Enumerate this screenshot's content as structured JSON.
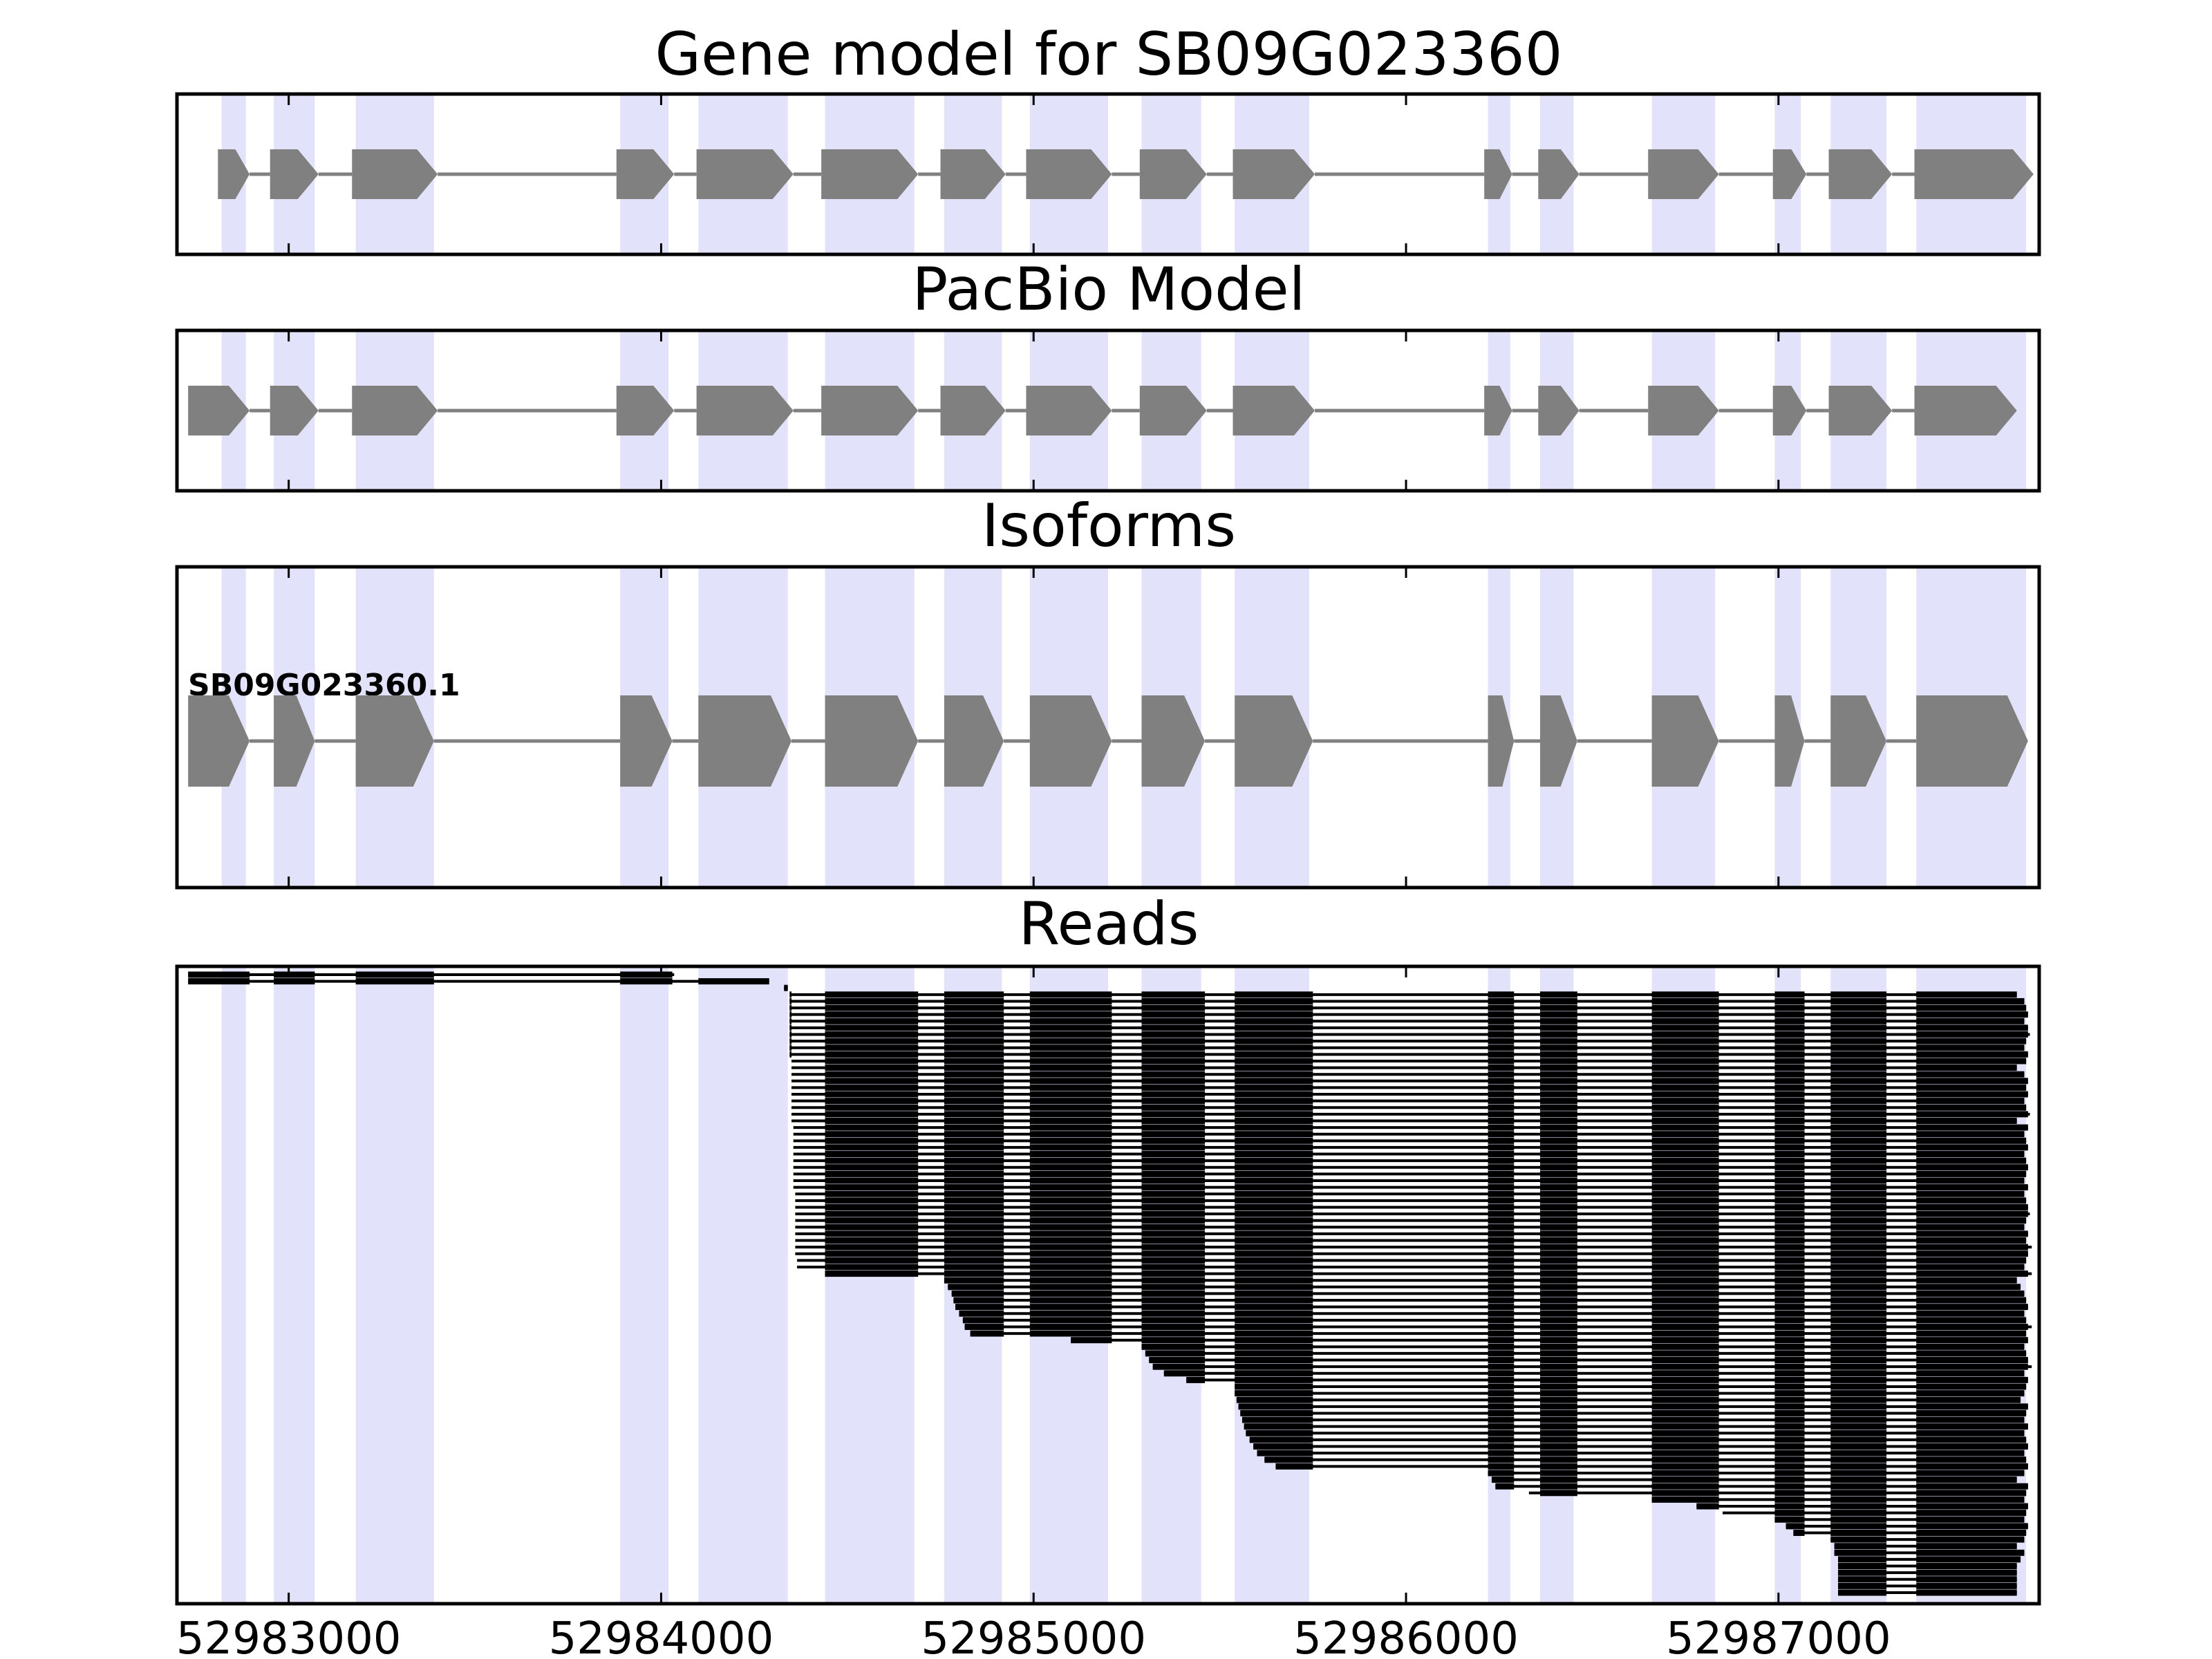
{
  "chart_data": {
    "type": "gene_model_tracks",
    "x_range": [
      52982700,
      52987700
    ],
    "x_ticks": [
      52983000,
      52984000,
      52985000,
      52986000,
      52987000
    ],
    "x_tick_labels": [
      "52983000",
      "52984000",
      "52985000",
      "52986000",
      "52987000"
    ],
    "highlight_color": "#e2e2fb",
    "feature_color": "#808080",
    "read_color": "#000000",
    "highlight_regions": [
      [
        52982820,
        52982885
      ],
      [
        52982960,
        52983070
      ],
      [
        52983180,
        52983390
      ],
      [
        52983890,
        52984020
      ],
      [
        52984100,
        52984340
      ],
      [
        52984440,
        52984680
      ],
      [
        52984760,
        52984915
      ],
      [
        52984990,
        52985200
      ],
      [
        52985290,
        52985450
      ],
      [
        52985540,
        52985740
      ],
      [
        52986220,
        52986280
      ],
      [
        52986360,
        52986450
      ],
      [
        52986660,
        52986830
      ],
      [
        52986990,
        52987060
      ],
      [
        52987140,
        52987290
      ],
      [
        52987370,
        52987665
      ]
    ],
    "panels": [
      {
        "title": "Gene model for SB09G023360",
        "exons": [
          [
            52982810,
            52982895
          ],
          [
            52982950,
            52983080
          ],
          [
            52983170,
            52983400
          ],
          [
            52983880,
            52984035
          ],
          [
            52984095,
            52984355
          ],
          [
            52984430,
            52984690
          ],
          [
            52984750,
            52984925
          ],
          [
            52984980,
            52985210
          ],
          [
            52985285,
            52985465
          ],
          [
            52985535,
            52985755
          ],
          [
            52986210,
            52986285
          ],
          [
            52986355,
            52986465
          ],
          [
            52986650,
            52986840
          ],
          [
            52986985,
            52987075
          ],
          [
            52987135,
            52987305
          ],
          [
            52987365,
            52987685
          ]
        ]
      },
      {
        "title": "PacBio Model",
        "exons": [
          [
            52982730,
            52982895
          ],
          [
            52982950,
            52983080
          ],
          [
            52983170,
            52983400
          ],
          [
            52983880,
            52984035
          ],
          [
            52984095,
            52984355
          ],
          [
            52984430,
            52984690
          ],
          [
            52984750,
            52984925
          ],
          [
            52984980,
            52985210
          ],
          [
            52985285,
            52985465
          ],
          [
            52985535,
            52985755
          ],
          [
            52986210,
            52986285
          ],
          [
            52986355,
            52986465
          ],
          [
            52986650,
            52986840
          ],
          [
            52986985,
            52987075
          ],
          [
            52987135,
            52987305
          ],
          [
            52987365,
            52987640
          ]
        ]
      },
      {
        "title": "Isoforms",
        "isoforms": [
          {
            "name": "SB09G023360.1",
            "exons": [
              [
                52982730,
                52982895
              ],
              [
                52982960,
                52983070
              ],
              [
                52983180,
                52983390
              ],
              [
                52983890,
                52984030
              ],
              [
                52984100,
                52984350
              ],
              [
                52984440,
                52984690
              ],
              [
                52984760,
                52984920
              ],
              [
                52984990,
                52985210
              ],
              [
                52985290,
                52985460
              ],
              [
                52985540,
                52985750
              ],
              [
                52986220,
                52986290
              ],
              [
                52986360,
                52986460
              ],
              [
                52986660,
                52986840
              ],
              [
                52986990,
                52987070
              ],
              [
                52987140,
                52987290
              ],
              [
                52987370,
                52987670
              ]
            ]
          }
        ]
      },
      {
        "title": "Reads",
        "read_count": 98,
        "read_starts": [
          52982730,
          52982730,
          52984330,
          52984345,
          52984345,
          52984345,
          52984345,
          52984345,
          52984345,
          52984345,
          52984345,
          52984345,
          52984345,
          52984350,
          52984350,
          52984350,
          52984350,
          52984350,
          52984350,
          52984350,
          52984350,
          52984350,
          52984350,
          52984355,
          52984355,
          52984355,
          52984355,
          52984355,
          52984355,
          52984355,
          52984355,
          52984355,
          52984355,
          52984360,
          52984360,
          52984360,
          52984360,
          52984360,
          52984360,
          52984360,
          52984360,
          52984360,
          52984360,
          52984365,
          52984365,
          52984440,
          52984760,
          52984770,
          52984780,
          52984785,
          52984790,
          52984800,
          52984810,
          52984815,
          52984830,
          52985100,
          52985290,
          52985300,
          52985310,
          52985320,
          52985350,
          52985410,
          52985540,
          52985540,
          52985545,
          52985550,
          52985555,
          52985560,
          52985565,
          52985570,
          52985580,
          52985590,
          52985600,
          52985620,
          52985650,
          52986220,
          52986230,
          52986240,
          52986330,
          52986660,
          52986780,
          52986850,
          52986990,
          52987020,
          52987040,
          52987140,
          52987150,
          52987150,
          52987160,
          52987160,
          52987160,
          52987160,
          52987160,
          52987160
        ],
        "read_ends": [
          52984035,
          52984290,
          52984340,
          52987640,
          52987660,
          52987665,
          52987670,
          52987660,
          52987670,
          52987675,
          52987665,
          52987660,
          52987670,
          52987665,
          52987640,
          52987660,
          52987670,
          52987665,
          52987670,
          52987660,
          52987665,
          52987675,
          52987640,
          52987670,
          52987660,
          52987665,
          52987670,
          52987660,
          52987665,
          52987670,
          52987665,
          52987660,
          52987670,
          52987660,
          52987665,
          52987670,
          52987675,
          52987665,
          52987660,
          52987670,
          52987665,
          52987680,
          52987670,
          52987665,
          52987660,
          52987680,
          52987640,
          52987650,
          52987660,
          52987665,
          52987670,
          52987660,
          52987665,
          52987680,
          52987665,
          52987670,
          52987660,
          52987665,
          52987670,
          52987680,
          52987660,
          52987670,
          52987665,
          52987660,
          52987650,
          52987670,
          52987665,
          52987660,
          52987670,
          52987660,
          52987665,
          52987670,
          52987660,
          52987665,
          52987670,
          52987660,
          52987640,
          52987670,
          52987665,
          52987660,
          52987670,
          52987665,
          52987660,
          52987670,
          52987665,
          52987660,
          52987640,
          52987660,
          52987650,
          52987640,
          52987640,
          52987640,
          52987640,
          52987640
        ]
      }
    ]
  }
}
